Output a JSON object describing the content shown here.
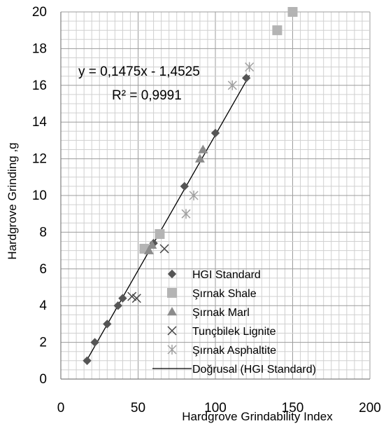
{
  "chart_data": {
    "type": "scatter",
    "title": "",
    "xlabel": "Hardgrove Grindability Index",
    "ylabel": "Hardgrove Grinding ,g",
    "xlim": [
      0,
      200
    ],
    "ylim": [
      0,
      20
    ],
    "x_ticks": [
      "0",
      "50",
      "100",
      "150",
      "200"
    ],
    "y_ticks": [
      "0",
      "2",
      "4",
      "6",
      "8",
      "10",
      "12",
      "14",
      "16",
      "18",
      "20"
    ],
    "grid": true,
    "legend_position": "bottom-right",
    "series": [
      {
        "name": "HGI Standard",
        "marker": "diamond",
        "color": "#555555",
        "points": [
          [
            17,
            1
          ],
          [
            22,
            2
          ],
          [
            30,
            3
          ],
          [
            37,
            4
          ],
          [
            40,
            4.4
          ],
          [
            60,
            7.4
          ],
          [
            80,
            10.5
          ],
          [
            100,
            13.4
          ],
          [
            120,
            16.4
          ]
        ]
      },
      {
        "name": "Şırnak Shale",
        "marker": "square",
        "color": "#b4b4b4",
        "points": [
          [
            54,
            7.1
          ],
          [
            64,
            7.9
          ],
          [
            140,
            19
          ],
          [
            150,
            20
          ]
        ]
      },
      {
        "name": "Şırnak Marl",
        "marker": "triangle",
        "color": "#8c8c8c",
        "points": [
          [
            57,
            7
          ],
          [
            59,
            7.3
          ],
          [
            90,
            12
          ],
          [
            92,
            12.5
          ]
        ]
      },
      {
        "name": "Tunçbilek Lignite",
        "marker": "x",
        "color": "#444444",
        "points": [
          [
            46,
            4.5
          ],
          [
            49,
            4.4
          ],
          [
            67,
            7.1
          ]
        ]
      },
      {
        "name": "Şırnak Asphaltite",
        "marker": "star",
        "color": "#a0a0a0",
        "points": [
          [
            81,
            9
          ],
          [
            86,
            10
          ],
          [
            111,
            16
          ],
          [
            122,
            17
          ]
        ]
      },
      {
        "name": "Doğrusal (HGI Standard)",
        "type": "trendline",
        "color": "#000000",
        "x_range": [
          17,
          122
        ]
      }
    ],
    "annotations": [
      {
        "text": "y = 0,1475x - 1,4525"
      },
      {
        "text": "R² = 0,9991"
      }
    ]
  }
}
